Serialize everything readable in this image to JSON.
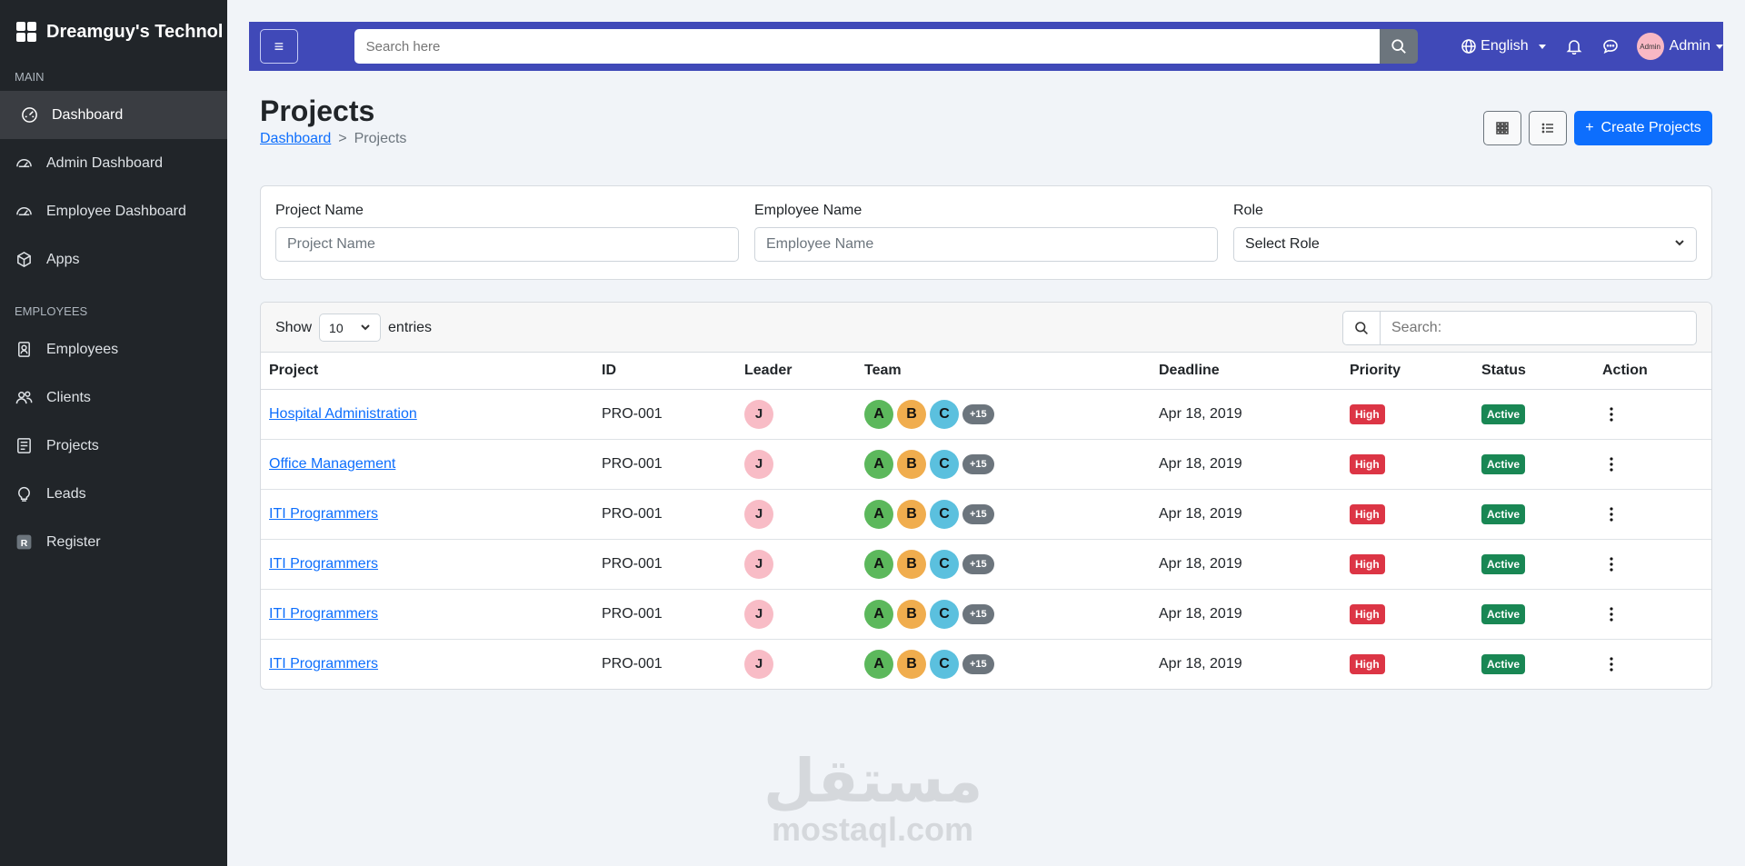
{
  "app": {
    "brand": "Dreamguy's Technol"
  },
  "sidebar": {
    "sections": [
      {
        "title": "Main",
        "items": [
          {
            "label": "Dashboard",
            "icon": "dashboard-icon",
            "active": true
          },
          {
            "label": "Admin Dashboard",
            "icon": "speedometer-icon"
          },
          {
            "label": "Employee Dashboard",
            "icon": "speedometer-icon"
          },
          {
            "label": "Apps",
            "icon": "box-icon"
          }
        ]
      },
      {
        "title": "Employees",
        "items": [
          {
            "label": "Employees",
            "icon": "id-badge-icon"
          },
          {
            "label": "Clients",
            "icon": "people-icon"
          },
          {
            "label": "Projects",
            "icon": "file-list-icon"
          },
          {
            "label": "Leads",
            "icon": "lightbulb-icon"
          },
          {
            "label": "Register",
            "icon": "register-icon"
          }
        ]
      }
    ]
  },
  "topbar": {
    "search_placeholder": "Search here",
    "language": "English",
    "user": "Admin",
    "avatar_text": "Admin"
  },
  "page": {
    "title": "Projects",
    "breadcrumb": {
      "home": "Dashboard",
      "separator": ">",
      "current": "Projects"
    },
    "create_label": "Create Projects"
  },
  "filters": {
    "project_name": {
      "label": "Project Name",
      "placeholder": "Project Name"
    },
    "employee_name": {
      "label": "Employee Name",
      "placeholder": "Employee Name"
    },
    "role": {
      "label": "Role",
      "value": "Select Role"
    }
  },
  "table": {
    "show_label": "Show",
    "entries_value": "10",
    "entries_label": "entries",
    "search_placeholder": "Search:",
    "columns": [
      "Project",
      "ID",
      "Leader",
      "Team",
      "Deadline",
      "Priority",
      "Status",
      "Action"
    ],
    "team_colors": [
      "#5cb85c",
      "#f0ad4e",
      "#5bc0de"
    ],
    "priority_color": "#dc3545",
    "status_color": "#198754",
    "rows": [
      {
        "project": "Hospital Administration",
        "id": "PRO-001",
        "leader": "J",
        "team": [
          "A",
          "B",
          "C"
        ],
        "more": "+15",
        "deadline": "Apr 18, 2019",
        "priority": "High",
        "status": "Active"
      },
      {
        "project": "Office Management",
        "id": "PRO-001",
        "leader": "J",
        "team": [
          "A",
          "B",
          "C"
        ],
        "more": "+15",
        "deadline": "Apr 18, 2019",
        "priority": "High",
        "status": "Active"
      },
      {
        "project": "ITI Programmers",
        "id": "PRO-001",
        "leader": "J",
        "team": [
          "A",
          "B",
          "C"
        ],
        "more": "+15",
        "deadline": "Apr 18, 2019",
        "priority": "High",
        "status": "Active"
      },
      {
        "project": "ITI Programmers",
        "id": "PRO-001",
        "leader": "J",
        "team": [
          "A",
          "B",
          "C"
        ],
        "more": "+15",
        "deadline": "Apr 18, 2019",
        "priority": "High",
        "status": "Active"
      },
      {
        "project": "ITI Programmers",
        "id": "PRO-001",
        "leader": "J",
        "team": [
          "A",
          "B",
          "C"
        ],
        "more": "+15",
        "deadline": "Apr 18, 2019",
        "priority": "High",
        "status": "Active"
      },
      {
        "project": "ITI Programmers",
        "id": "PRO-001",
        "leader": "J",
        "team": [
          "A",
          "B",
          "C"
        ],
        "more": "+15",
        "deadline": "Apr 18, 2019",
        "priority": "High",
        "status": "Active"
      }
    ]
  },
  "watermark": {
    "arabic": "مستقل",
    "latin": "mostaql.com"
  }
}
